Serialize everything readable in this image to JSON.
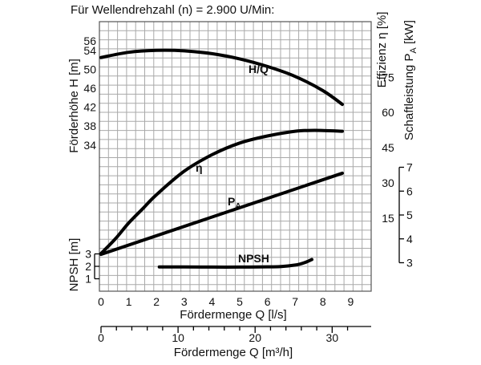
{
  "chart_data": {
    "type": "line",
    "title": "Für Wellendrehzahl (n) = 2.900 U/Min:",
    "xlabel": "Fördermenge Q [l/s]",
    "x2label": "Fördermenge Q [m³/h]",
    "ylabel_head": "Förderhöhe H [m]",
    "ylabel_npsh": "NPSH [m]",
    "ylabel_eff": "Effizienz η [%]",
    "ylabel_power_main": "Schaftleistung P",
    "ylabel_power_sub": "A",
    "ylabel_power_unit": " [kW]",
    "xlim": [
      -0.2,
      9.5
    ],
    "x_ticks": [
      "0",
      "1",
      "2",
      "3",
      "4",
      "5",
      "6",
      "7",
      "8",
      "9"
    ],
    "x2_ticks": [
      "0",
      "10",
      "20",
      "30"
    ],
    "head_ticks": [
      "34",
      "38",
      "42",
      "46",
      "50",
      "54",
      "56"
    ],
    "npsh_ticks": [
      "1",
      "2",
      "3"
    ],
    "eff_ticks": [
      "15",
      "30",
      "45",
      "60",
      "75"
    ],
    "power_ticks": [
      "3",
      "4",
      "5",
      "6",
      "7"
    ],
    "series": [
      {
        "name": "H/Q",
        "label": "H/Q",
        "x": [
          0,
          1,
          2,
          3,
          4,
          5,
          6,
          7,
          8,
          8.7
        ],
        "y": [
          52.5,
          53.6,
          54.0,
          53.9,
          53.3,
          52.2,
          50.6,
          48.5,
          45.5,
          42.6
        ],
        "unit": "m"
      },
      {
        "name": "eta",
        "label": "η",
        "x": [
          0,
          0.5,
          1,
          1.5,
          2,
          3,
          4,
          5,
          6,
          7,
          7.7,
          8.7
        ],
        "y": [
          0,
          6,
          13,
          19,
          25,
          35,
          42,
          47,
          50,
          52,
          52.4,
          52
        ],
        "unit": "%"
      },
      {
        "name": "PA",
        "label_main": "P",
        "label_sub": "A",
        "x": [
          0,
          8.7
        ],
        "y": [
          3.35,
          6.75
        ],
        "unit": "kW"
      },
      {
        "name": "NPSH",
        "label": "NPSH",
        "x": [
          2.1,
          3,
          4,
          5,
          6,
          6.5,
          7,
          7.2,
          7.4,
          7.6
        ],
        "y": [
          1.95,
          1.95,
          1.94,
          1.94,
          1.96,
          1.98,
          2.1,
          2.2,
          2.35,
          2.55
        ],
        "unit": "m"
      }
    ]
  }
}
